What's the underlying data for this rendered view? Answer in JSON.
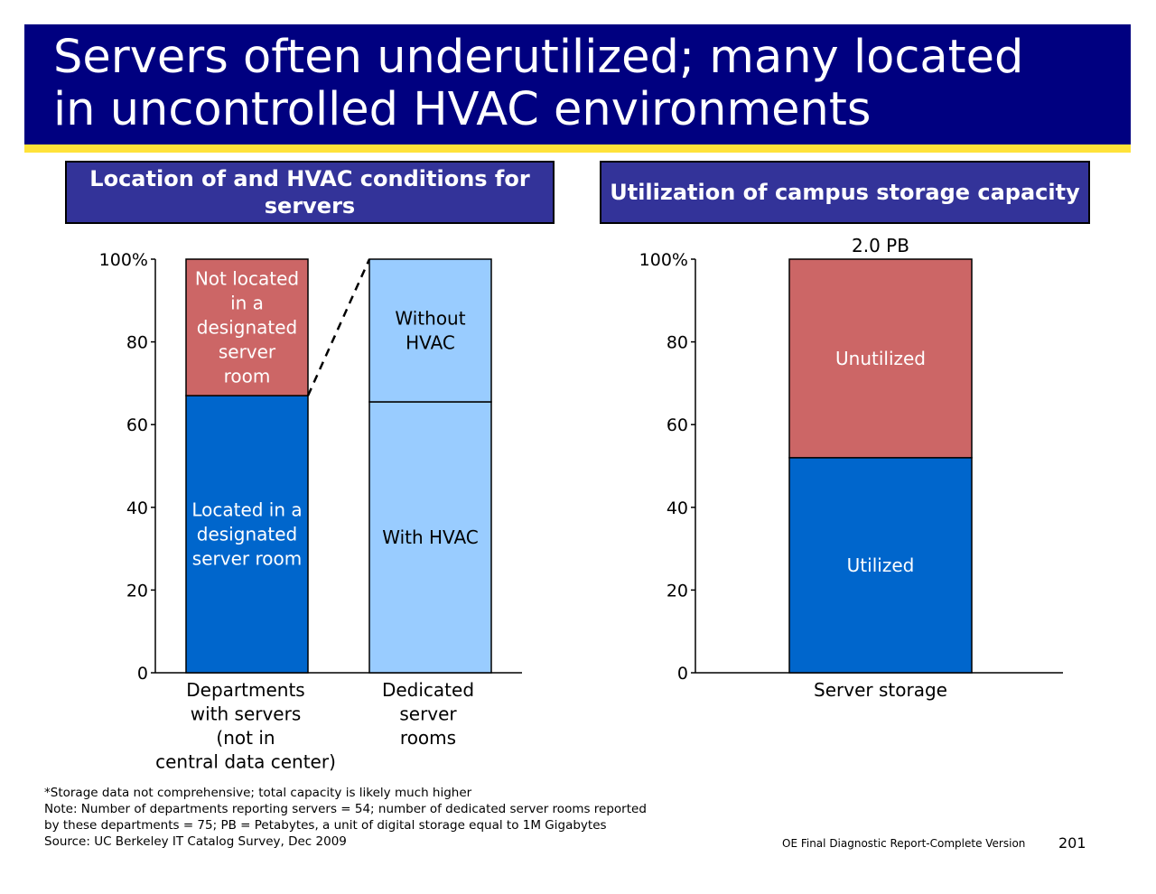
{
  "slide": {
    "title_line1": "Servers often underutilized; many located",
    "title_line2": "in uncontrolled HVAC environments",
    "colors": {
      "title_bg": "#000080",
      "accent_stripe": "#ffe23a",
      "header_bg": "#333399"
    }
  },
  "panels": {
    "left_header": "Location of and HVAC conditions for servers",
    "right_header": "Utilization of campus storage capacity"
  },
  "chart_data": [
    {
      "type": "bar",
      "stacked": true,
      "ylim": [
        0,
        100
      ],
      "yticks": [
        "0",
        "20",
        "40",
        "60",
        "80",
        "100%"
      ],
      "categories": [
        [
          "Departments",
          "with servers",
          "(not in",
          "central data center)"
        ],
        [
          "Dedicated",
          "server",
          "rooms"
        ]
      ],
      "bars": [
        {
          "segments": [
            {
              "value": 67,
              "label": [
                "Located in a",
                "designated",
                "server room"
              ],
              "color": "#0066cc",
              "text_color": "#ffffff"
            },
            {
              "value": 33,
              "label": [
                "Not located",
                "in a",
                "designated",
                "server",
                "room"
              ],
              "color": "#cc6666",
              "text_color": "#ffffff"
            }
          ]
        },
        {
          "segments": [
            {
              "value": 65.5,
              "label": [
                "With HVAC"
              ],
              "color": "#99ccff",
              "text_color": "#000000"
            },
            {
              "value": 34.5,
              "label": [
                "Without",
                "HVAC"
              ],
              "color": "#99ccff",
              "text_color": "#000000"
            }
          ]
        }
      ],
      "connector": "dashed line from top of first bar's lower segment to top of second bar"
    },
    {
      "type": "bar",
      "stacked": true,
      "ylim": [
        0,
        100
      ],
      "yticks": [
        "0",
        "20",
        "40",
        "60",
        "80",
        "100%"
      ],
      "categories": [
        [
          "Server storage"
        ]
      ],
      "bars": [
        {
          "total_label": "2.0 PB",
          "segments": [
            {
              "value": 52,
              "label": [
                "Utilized"
              ],
              "color": "#0066cc",
              "text_color": "#ffffff"
            },
            {
              "value": 48,
              "label": [
                "Unutilized"
              ],
              "color": "#cc6666",
              "text_color": "#ffffff"
            }
          ]
        }
      ]
    }
  ],
  "footnotes": [
    "*Storage data not comprehensive; total capacity is likely much higher",
    "Note: Number of departments reporting servers = 54; number of dedicated server rooms reported",
    "by these departments = 75; PB = Petabytes, a unit of digital storage equal to 1M Gigabytes",
    "Source: UC Berkeley IT Catalog Survey, Dec 2009"
  ],
  "footer": {
    "report_label": "OE Final Diagnostic Report-Complete Version",
    "page_number": "201"
  }
}
